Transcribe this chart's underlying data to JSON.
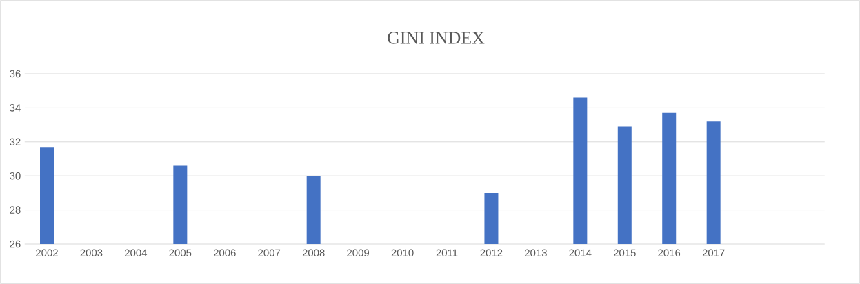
{
  "chart_data": {
    "type": "bar",
    "title": "GINI INDEX",
    "categories": [
      "2002",
      "2003",
      "2004",
      "2005",
      "2006",
      "2007",
      "2008",
      "2009",
      "2010",
      "2011",
      "2012",
      "2013",
      "2014",
      "2015",
      "2016",
      "2017",
      null,
      null
    ],
    "values": [
      31.7,
      null,
      null,
      30.6,
      null,
      null,
      30.0,
      null,
      null,
      null,
      29.0,
      null,
      34.6,
      32.9,
      33.7,
      33.2,
      null,
      null
    ],
    "color": "#4472c4",
    "ylim": [
      26,
      36
    ],
    "yticks": [
      26,
      28,
      30,
      32,
      34,
      36
    ],
    "grid": "y"
  }
}
